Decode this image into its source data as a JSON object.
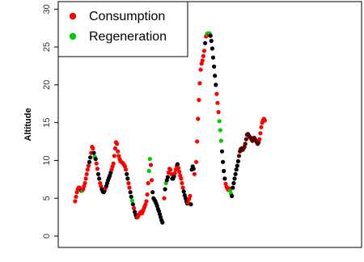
{
  "chart_data": {
    "type": "scatter",
    "ylabel": "Altitude",
    "xlabel": "",
    "title": "",
    "ylim": [
      -1.5,
      31
    ],
    "yticks": [
      0,
      5,
      10,
      15,
      20,
      25,
      30
    ],
    "xlim": [
      0,
      100
    ],
    "grid": false,
    "legend_position": "top-left",
    "colors": {
      "Consumption": "#ff0000",
      "Regeneration": "#00cc00",
      "Other": "#000000",
      "Dark segment": "#5a0000"
    },
    "legend": [
      {
        "label": "Consumption",
        "color": "#ff0000"
      },
      {
        "label": "Regeneration",
        "color": "#00cc00"
      }
    ],
    "points": [
      {
        "x": 4.6,
        "y": 4.6,
        "c": "Consumption"
      },
      {
        "x": 4.9,
        "y": 5.2,
        "c": "Consumption"
      },
      {
        "x": 5.2,
        "y": 5.8,
        "c": "Consumption"
      },
      {
        "x": 5.5,
        "y": 6.2,
        "c": "Consumption"
      },
      {
        "x": 5.8,
        "y": 6.4,
        "c": "Consumption"
      },
      {
        "x": 6.1,
        "y": 6.4,
        "c": "Consumption"
      },
      {
        "x": 6.4,
        "y": 6.2,
        "c": "Consumption"
      },
      {
        "x": 6.7,
        "y": 6.0,
        "c": "Other"
      },
      {
        "x": 7.0,
        "y": 6.0,
        "c": "Regeneration"
      },
      {
        "x": 7.3,
        "y": 6.2,
        "c": "Consumption"
      },
      {
        "x": 7.6,
        "y": 6.6,
        "c": "Consumption"
      },
      {
        "x": 7.9,
        "y": 7.0,
        "c": "Consumption"
      },
      {
        "x": 8.2,
        "y": 7.6,
        "c": "Consumption"
      },
      {
        "x": 8.5,
        "y": 8.2,
        "c": "Consumption"
      },
      {
        "x": 8.8,
        "y": 8.8,
        "c": "Consumption"
      },
      {
        "x": 9.1,
        "y": 9.3,
        "c": "Consumption"
      },
      {
        "x": 9.4,
        "y": 9.8,
        "c": "Other"
      },
      {
        "x": 9.7,
        "y": 10.4,
        "c": "Other"
      },
      {
        "x": 10.0,
        "y": 11.0,
        "c": "Consumption"
      },
      {
        "x": 10.3,
        "y": 11.8,
        "c": "Consumption"
      },
      {
        "x": 10.6,
        "y": 11.6,
        "c": "Consumption"
      },
      {
        "x": 10.9,
        "y": 11.0,
        "c": "Other"
      },
      {
        "x": 11.2,
        "y": 10.5,
        "c": "Regeneration"
      },
      {
        "x": 11.5,
        "y": 10.2,
        "c": "Other"
      },
      {
        "x": 11.8,
        "y": 9.6,
        "c": "Consumption"
      },
      {
        "x": 12.1,
        "y": 8.9,
        "c": "Consumption"
      },
      {
        "x": 12.4,
        "y": 8.2,
        "c": "Other"
      },
      {
        "x": 12.7,
        "y": 7.6,
        "c": "Other"
      },
      {
        "x": 13.0,
        "y": 7.0,
        "c": "Consumption"
      },
      {
        "x": 13.3,
        "y": 6.6,
        "c": "Consumption"
      },
      {
        "x": 13.6,
        "y": 6.2,
        "c": "Other"
      },
      {
        "x": 13.9,
        "y": 5.9,
        "c": "Other"
      },
      {
        "x": 14.2,
        "y": 5.8,
        "c": "Other"
      },
      {
        "x": 14.5,
        "y": 6.0,
        "c": "Other"
      },
      {
        "x": 14.8,
        "y": 6.3,
        "c": "Consumption"
      },
      {
        "x": 15.1,
        "y": 6.6,
        "c": "Other"
      },
      {
        "x": 15.4,
        "y": 7.0,
        "c": "Other"
      },
      {
        "x": 15.7,
        "y": 7.4,
        "c": "Other"
      },
      {
        "x": 16.0,
        "y": 7.7,
        "c": "Other"
      },
      {
        "x": 16.3,
        "y": 8.0,
        "c": "Other"
      },
      {
        "x": 16.6,
        "y": 8.4,
        "c": "Other"
      },
      {
        "x": 16.9,
        "y": 8.8,
        "c": "Consumption"
      },
      {
        "x": 17.2,
        "y": 9.2,
        "c": "Consumption"
      },
      {
        "x": 17.5,
        "y": 9.6,
        "c": "Consumption"
      },
      {
        "x": 17.8,
        "y": 10.6,
        "c": "Consumption"
      },
      {
        "x": 18.1,
        "y": 11.6,
        "c": "Consumption"
      },
      {
        "x": 18.4,
        "y": 12.4,
        "c": "Consumption"
      },
      {
        "x": 18.7,
        "y": 12.2,
        "c": "Consumption"
      },
      {
        "x": 19.0,
        "y": 11.2,
        "c": "Consumption"
      },
      {
        "x": 19.3,
        "y": 10.6,
        "c": "Consumption"
      },
      {
        "x": 19.6,
        "y": 10.2,
        "c": "Consumption"
      },
      {
        "x": 19.9,
        "y": 9.9,
        "c": "Consumption"
      },
      {
        "x": 20.2,
        "y": 9.8,
        "c": "Consumption"
      },
      {
        "x": 20.5,
        "y": 9.7,
        "c": "Consumption"
      },
      {
        "x": 20.8,
        "y": 9.6,
        "c": "Consumption"
      },
      {
        "x": 21.1,
        "y": 9.4,
        "c": "Consumption"
      },
      {
        "x": 21.4,
        "y": 9.2,
        "c": "Consumption"
      },
      {
        "x": 21.7,
        "y": 8.8,
        "c": "Consumption"
      },
      {
        "x": 22.0,
        "y": 8.2,
        "c": "Other"
      },
      {
        "x": 22.3,
        "y": 7.6,
        "c": "Other"
      },
      {
        "x": 22.6,
        "y": 7.0,
        "c": "Consumption"
      },
      {
        "x": 22.9,
        "y": 6.4,
        "c": "Consumption"
      },
      {
        "x": 23.2,
        "y": 5.8,
        "c": "Other"
      },
      {
        "x": 23.5,
        "y": 5.2,
        "c": "Other"
      },
      {
        "x": 23.8,
        "y": 4.7,
        "c": "Regeneration"
      },
      {
        "x": 24.1,
        "y": 4.2,
        "c": "Other"
      },
      {
        "x": 24.4,
        "y": 3.7,
        "c": "Consumption"
      },
      {
        "x": 24.7,
        "y": 3.2,
        "c": "Other"
      },
      {
        "x": 25.0,
        "y": 2.8,
        "c": "Other"
      },
      {
        "x": 25.3,
        "y": 2.5,
        "c": "Other"
      },
      {
        "x": 25.6,
        "y": 2.5,
        "c": "Consumption"
      },
      {
        "x": 25.9,
        "y": 2.7,
        "c": "Consumption"
      },
      {
        "x": 26.2,
        "y": 2.9,
        "c": "Consumption"
      },
      {
        "x": 26.5,
        "y": 3.1,
        "c": "Consumption"
      },
      {
        "x": 26.8,
        "y": 3.2,
        "c": "Consumption"
      },
      {
        "x": 27.1,
        "y": 3.0,
        "c": "Consumption"
      },
      {
        "x": 27.4,
        "y": 3.3,
        "c": "Consumption"
      },
      {
        "x": 27.7,
        "y": 3.6,
        "c": "Consumption"
      },
      {
        "x": 28.0,
        "y": 3.9,
        "c": "Consumption"
      },
      {
        "x": 28.3,
        "y": 4.2,
        "c": "Consumption"
      },
      {
        "x": 28.6,
        "y": 4.6,
        "c": "Consumption"
      },
      {
        "x": 28.9,
        "y": 5.5,
        "c": "Consumption"
      },
      {
        "x": 29.2,
        "y": 7.0,
        "c": "Consumption"
      },
      {
        "x": 29.5,
        "y": 8.6,
        "c": "Regeneration"
      },
      {
        "x": 29.8,
        "y": 10.2,
        "c": "Regeneration"
      },
      {
        "x": 30.1,
        "y": 9.4,
        "c": "Consumption"
      },
      {
        "x": 30.4,
        "y": 7.4,
        "c": "Consumption"
      },
      {
        "x": 30.7,
        "y": 5.8,
        "c": "Other"
      },
      {
        "x": 31.0,
        "y": 5.0,
        "c": "Other"
      },
      {
        "x": 31.3,
        "y": 4.8,
        "c": "Other"
      },
      {
        "x": 31.6,
        "y": 4.6,
        "c": "Other"
      },
      {
        "x": 31.9,
        "y": 4.3,
        "c": "Other"
      },
      {
        "x": 32.2,
        "y": 4.0,
        "c": "Other"
      },
      {
        "x": 32.5,
        "y": 3.6,
        "c": "Other"
      },
      {
        "x": 32.8,
        "y": 3.3,
        "c": "Other"
      },
      {
        "x": 33.1,
        "y": 2.9,
        "c": "Other"
      },
      {
        "x": 33.4,
        "y": 2.5,
        "c": "Other"
      },
      {
        "x": 33.7,
        "y": 2.1,
        "c": "Other"
      },
      {
        "x": 34.0,
        "y": 1.8,
        "c": "Other"
      },
      {
        "x": 34.6,
        "y": 5.0,
        "c": "Consumption"
      },
      {
        "x": 34.9,
        "y": 6.2,
        "c": "Other"
      },
      {
        "x": 35.2,
        "y": 7.0,
        "c": "Regeneration"
      },
      {
        "x": 35.5,
        "y": 7.4,
        "c": "Other"
      },
      {
        "x": 35.8,
        "y": 7.8,
        "c": "Other"
      },
      {
        "x": 36.1,
        "y": 8.4,
        "c": "Consumption"
      },
      {
        "x": 36.4,
        "y": 8.9,
        "c": "Consumption"
      },
      {
        "x": 36.7,
        "y": 8.8,
        "c": "Consumption"
      },
      {
        "x": 37.0,
        "y": 8.2,
        "c": "Consumption"
      },
      {
        "x": 37.3,
        "y": 7.6,
        "c": "Other"
      },
      {
        "x": 37.6,
        "y": 7.6,
        "c": "Other"
      },
      {
        "x": 37.9,
        "y": 7.9,
        "c": "Other"
      },
      {
        "x": 38.2,
        "y": 8.3,
        "c": "Consumption"
      },
      {
        "x": 38.5,
        "y": 8.8,
        "c": "Consumption"
      },
      {
        "x": 38.8,
        "y": 9.3,
        "c": "Consumption"
      },
      {
        "x": 39.1,
        "y": 9.5,
        "c": "Other"
      },
      {
        "x": 39.4,
        "y": 9.0,
        "c": "Consumption"
      },
      {
        "x": 39.7,
        "y": 8.5,
        "c": "Consumption"
      },
      {
        "x": 40.0,
        "y": 8.0,
        "c": "Consumption"
      },
      {
        "x": 40.3,
        "y": 7.6,
        "c": "Consumption"
      },
      {
        "x": 40.6,
        "y": 7.0,
        "c": "Consumption"
      },
      {
        "x": 40.9,
        "y": 6.4,
        "c": "Consumption"
      },
      {
        "x": 41.2,
        "y": 5.9,
        "c": "Other"
      },
      {
        "x": 41.5,
        "y": 5.4,
        "c": "Other"
      },
      {
        "x": 41.8,
        "y": 5.0,
        "c": "Other"
      },
      {
        "x": 42.1,
        "y": 4.6,
        "c": "Other"
      },
      {
        "x": 42.4,
        "y": 4.3,
        "c": "Other"
      },
      {
        "x": 42.7,
        "y": 4.4,
        "c": "Consumption"
      },
      {
        "x": 43.0,
        "y": 4.9,
        "c": "Consumption"
      },
      {
        "x": 43.3,
        "y": 5.3,
        "c": "Consumption"
      },
      {
        "x": 43.6,
        "y": 4.2,
        "c": "Other"
      },
      {
        "x": 43.9,
        "y": 8.8,
        "c": "Other"
      },
      {
        "x": 44.2,
        "y": 9.2,
        "c": "Other"
      },
      {
        "x": 44.5,
        "y": 8.9,
        "c": "Other"
      },
      {
        "x": 44.8,
        "y": 8.2,
        "c": "Consumption"
      },
      {
        "x": 45.4,
        "y": 9.8,
        "c": "Consumption"
      },
      {
        "x": 45.7,
        "y": 12.5,
        "c": "Consumption"
      },
      {
        "x": 46.0,
        "y": 15.5,
        "c": "Consumption"
      },
      {
        "x": 46.3,
        "y": 18.0,
        "c": "Consumption"
      },
      {
        "x": 46.6,
        "y": 20.2,
        "c": "Consumption"
      },
      {
        "x": 46.9,
        "y": 22.0,
        "c": "Consumption"
      },
      {
        "x": 47.2,
        "y": 22.8,
        "c": "Consumption"
      },
      {
        "x": 47.5,
        "y": 23.2,
        "c": "Consumption"
      },
      {
        "x": 47.8,
        "y": 23.8,
        "c": "Consumption"
      },
      {
        "x": 48.1,
        "y": 24.5,
        "c": "Consumption"
      },
      {
        "x": 48.4,
        "y": 25.5,
        "c": "Other"
      },
      {
        "x": 48.7,
        "y": 26.4,
        "c": "Consumption"
      },
      {
        "x": 49.0,
        "y": 26.7,
        "c": "Regeneration"
      },
      {
        "x": 49.3,
        "y": 26.8,
        "c": "Regeneration"
      },
      {
        "x": 49.6,
        "y": 26.6,
        "c": "Consumption"
      },
      {
        "x": 49.9,
        "y": 26.8,
        "c": "Regeneration"
      },
      {
        "x": 50.2,
        "y": 26.5,
        "c": "Other"
      },
      {
        "x": 50.5,
        "y": 25.8,
        "c": "Other"
      },
      {
        "x": 50.8,
        "y": 24.8,
        "c": "Other"
      },
      {
        "x": 51.1,
        "y": 23.6,
        "c": "Other"
      },
      {
        "x": 51.4,
        "y": 22.4,
        "c": "Other"
      },
      {
        "x": 51.7,
        "y": 21.2,
        "c": "Other"
      },
      {
        "x": 52.0,
        "y": 20.0,
        "c": "Other"
      },
      {
        "x": 52.3,
        "y": 18.8,
        "c": "Consumption"
      },
      {
        "x": 52.6,
        "y": 17.6,
        "c": "Consumption"
      },
      {
        "x": 52.9,
        "y": 16.4,
        "c": "Consumption"
      },
      {
        "x": 53.2,
        "y": 15.2,
        "c": "Regeneration"
      },
      {
        "x": 53.5,
        "y": 14.0,
        "c": "Regeneration"
      },
      {
        "x": 53.8,
        "y": 12.6,
        "c": "Regeneration"
      },
      {
        "x": 54.1,
        "y": 11.2,
        "c": "Other"
      },
      {
        "x": 54.4,
        "y": 9.8,
        "c": "Other"
      },
      {
        "x": 54.7,
        "y": 8.6,
        "c": "Other"
      },
      {
        "x": 55.0,
        "y": 7.6,
        "c": "Other"
      },
      {
        "x": 55.3,
        "y": 6.9,
        "c": "Consumption"
      },
      {
        "x": 55.6,
        "y": 6.5,
        "c": "Consumption"
      },
      {
        "x": 55.9,
        "y": 6.3,
        "c": "Consumption"
      },
      {
        "x": 56.2,
        "y": 6.1,
        "c": "Consumption"
      },
      {
        "x": 56.5,
        "y": 6.3,
        "c": "Consumption"
      },
      {
        "x": 56.8,
        "y": 6.0,
        "c": "Regeneration"
      },
      {
        "x": 57.1,
        "y": 5.6,
        "c": "Regeneration"
      },
      {
        "x": 57.4,
        "y": 5.3,
        "c": "Other"
      },
      {
        "x": 57.7,
        "y": 6.4,
        "c": "Other"
      },
      {
        "x": 58.0,
        "y": 7.0,
        "c": "Other"
      },
      {
        "x": 58.3,
        "y": 7.6,
        "c": "Other"
      },
      {
        "x": 58.6,
        "y": 8.2,
        "c": "Other"
      },
      {
        "x": 58.9,
        "y": 8.8,
        "c": "Other"
      },
      {
        "x": 59.2,
        "y": 9.3,
        "c": "Other"
      },
      {
        "x": 59.5,
        "y": 9.9,
        "c": "Other"
      },
      {
        "x": 59.8,
        "y": 10.6,
        "c": "Dark segment"
      },
      {
        "x": 60.1,
        "y": 11.2,
        "c": "Dark segment"
      },
      {
        "x": 60.4,
        "y": 11.5,
        "c": "Dark segment"
      },
      {
        "x": 60.7,
        "y": 11.6,
        "c": "Dark segment"
      },
      {
        "x": 61.0,
        "y": 11.4,
        "c": "Dark segment"
      },
      {
        "x": 61.3,
        "y": 11.6,
        "c": "Dark segment"
      },
      {
        "x": 61.6,
        "y": 11.8,
        "c": "Dark segment"
      },
      {
        "x": 61.9,
        "y": 12.2,
        "c": "Dark segment"
      },
      {
        "x": 62.2,
        "y": 12.8,
        "c": "Dark segment"
      },
      {
        "x": 62.5,
        "y": 13.4,
        "c": "Dark segment"
      },
      {
        "x": 62.8,
        "y": 13.5,
        "c": "Dark segment"
      },
      {
        "x": 63.1,
        "y": 13.3,
        "c": "Dark segment"
      },
      {
        "x": 63.4,
        "y": 13.1,
        "c": "Dark segment"
      },
      {
        "x": 63.7,
        "y": 13.0,
        "c": "Dark segment"
      },
      {
        "x": 64.0,
        "y": 12.8,
        "c": "Dark segment"
      },
      {
        "x": 64.3,
        "y": 12.6,
        "c": "Dark segment"
      },
      {
        "x": 64.6,
        "y": 12.9,
        "c": "Dark segment"
      },
      {
        "x": 64.9,
        "y": 13.0,
        "c": "Dark segment"
      },
      {
        "x": 65.2,
        "y": 12.8,
        "c": "Dark segment"
      },
      {
        "x": 65.5,
        "y": 12.6,
        "c": "Dark segment"
      },
      {
        "x": 65.8,
        "y": 12.4,
        "c": "Dark segment"
      },
      {
        "x": 66.1,
        "y": 12.2,
        "c": "Dark segment"
      },
      {
        "x": 66.4,
        "y": 12.4,
        "c": "Dark segment"
      },
      {
        "x": 66.7,
        "y": 12.8,
        "c": "Consumption"
      },
      {
        "x": 67.0,
        "y": 13.6,
        "c": "Consumption"
      },
      {
        "x": 67.3,
        "y": 14.4,
        "c": "Consumption"
      },
      {
        "x": 67.6,
        "y": 15.0,
        "c": "Consumption"
      },
      {
        "x": 67.9,
        "y": 15.3,
        "c": "Consumption"
      },
      {
        "x": 68.2,
        "y": 15.5,
        "c": "Consumption"
      },
      {
        "x": 68.5,
        "y": 15.3,
        "c": "Consumption"
      }
    ]
  }
}
